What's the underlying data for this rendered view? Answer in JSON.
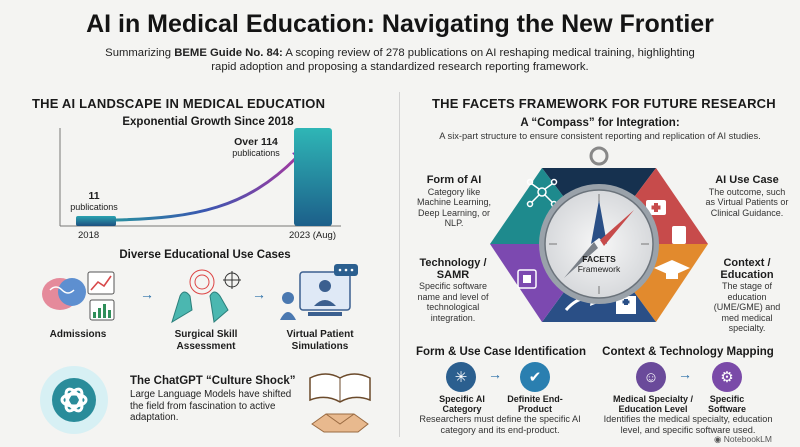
{
  "header": {
    "title": "AI in Medical Education: Navigating the New Frontier",
    "subtitle_prefix": "Summarizing ",
    "subtitle_bold": "BEME Guide No. 84:",
    "subtitle_rest": " A scoping review of 278 publications on AI reshaping medical training, highlighting rapid adoption and proposing a standardized research reporting framework."
  },
  "left": {
    "heading": "THE AI LANDSCAPE IN MEDICAL EDUCATION",
    "growth": {
      "title": "Exponential Growth Since 2018",
      "start_value": "11",
      "start_unit": "publications",
      "end_value": "Over 114",
      "end_unit": "publications",
      "x_start": "2018",
      "x_end": "2023 (Aug)"
    },
    "use_cases": {
      "title": "Diverse Educational Use Cases",
      "items": [
        {
          "label": "Admissions",
          "icon": "brain-chart-icon"
        },
        {
          "label": "Surgical Skill Assessment",
          "icon": "surgical-hands-icon"
        },
        {
          "label": "Virtual Patient Simulations",
          "icon": "virtual-patient-icon"
        }
      ]
    },
    "chatgpt": {
      "title": "The ChatGPT “Culture Shock”",
      "text": "Large Language Models have shifted the field from fascination to active adaptation."
    }
  },
  "right": {
    "heading": "THE FACETS FRAMEWORK FOR FUTURE RESEARCH",
    "compass_title": "A “Compass” for Integration:",
    "compass_sub": "A six-part structure to ensure consistent reporting and replication of AI studies.",
    "center_label_1": "FACETS",
    "center_label_2": "Framework",
    "facets": {
      "form": {
        "title": "Form of AI",
        "text": "Category like Machine Learning, Deep Learning, or NLP."
      },
      "use_case": {
        "title": "AI Use Case",
        "text": "The outcome, such as Virtual Patients or Clinical Guidance."
      },
      "technology": {
        "title": "Technology / SAMR",
        "text": "Specific software name and level of technological integration."
      },
      "context": {
        "title": "Context / Education",
        "text": "The stage of education (UME/GME) and med medical specialty."
      }
    },
    "form_use": {
      "title": "Form & Use Case Identification",
      "left_label": "Specific AI Category",
      "right_label": "Definite End-Product",
      "text": "Researchers must define the specific AI category and its end-product."
    },
    "context_tech": {
      "title": "Context & Technology Mapping",
      "left_label": "Medical Specialty / Education Level",
      "right_label": "Specific Software",
      "text": "Identifies the medical specialty, education level, and specific software used."
    },
    "watermark": "NotebookLM"
  },
  "colors": {
    "teal": "#1f8f8f",
    "navy": "#1e3d6b",
    "purple": "#7b3fa8",
    "orange": "#e08a2c",
    "red": "#d9534f"
  }
}
